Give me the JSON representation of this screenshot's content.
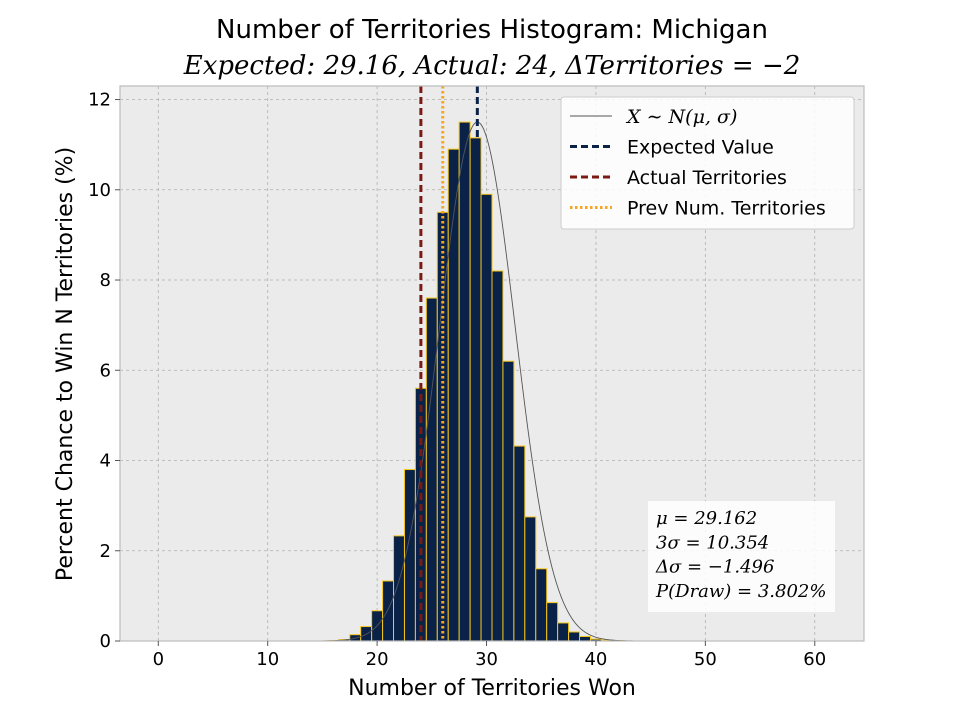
{
  "chart_data": {
    "type": "bar",
    "title": "Number of Territories Histogram: Michigan",
    "subtitle": "Expected: 29.16, Actual: 24, ΔTerritories = −2",
    "xlabel": "Number of Territories Won",
    "ylabel": "Percent Chance to Win N Territories (%)",
    "xlim": [
      -3.5,
      64.5
    ],
    "ylim": [
      0,
      12.3
    ],
    "xticks": [
      "0",
      "10",
      "20",
      "30",
      "40",
      "50",
      "60"
    ],
    "yticks": [
      "0",
      "2",
      "4",
      "6",
      "8",
      "10",
      "12"
    ],
    "grid": true,
    "legend_position": "top-right",
    "legend": [
      {
        "label": "X ∼ N(μ, σ)",
        "style": "thin-line",
        "color": "#555555"
      },
      {
        "label": "Expected Value",
        "style": "dashed",
        "color": "#0b2248"
      },
      {
        "label": "Actual Territories",
        "style": "dashed",
        "color": "#7b1a12"
      },
      {
        "label": "Prev Num. Territories",
        "style": "dotted",
        "color": "#f5a623"
      }
    ],
    "bars": {
      "x": [
        16,
        17,
        18,
        19,
        20,
        21,
        22,
        23,
        24,
        25,
        26,
        27,
        28,
        29,
        30,
        31,
        32,
        33,
        34,
        35,
        36,
        37,
        38,
        39,
        40,
        41,
        42
      ],
      "values": [
        0.01,
        0.03,
        0.14,
        0.32,
        0.67,
        1.33,
        2.33,
        3.8,
        5.6,
        7.6,
        9.5,
        10.9,
        11.5,
        11.15,
        9.9,
        8.2,
        6.2,
        4.32,
        2.75,
        1.6,
        0.85,
        0.4,
        0.2,
        0.1,
        0.04,
        0.02,
        0.01
      ],
      "fill": "#0b2248",
      "edge": "#f5c518"
    },
    "normal_fit": {
      "mu": 29.162,
      "sigma": 3.4513,
      "peak": 11.5
    },
    "vlines": [
      {
        "name": "Expected Value",
        "x": 29.16,
        "color": "#0b2248",
        "style": "dashed"
      },
      {
        "name": "Actual Territories",
        "x": 24,
        "color": "#7b1a12",
        "style": "dashed"
      },
      {
        "name": "Prev Num. Territories",
        "x": 26,
        "color": "#f5a623",
        "style": "dotted"
      }
    ],
    "stats_box": [
      "μ = 29.162",
      "3σ = 10.354",
      "Δσ = −1.496",
      "P(Draw) = 3.802%"
    ],
    "colors": {
      "background": "#ebebeb",
      "grid": "#b0b0b0",
      "spine": "#bcbcbc"
    }
  }
}
